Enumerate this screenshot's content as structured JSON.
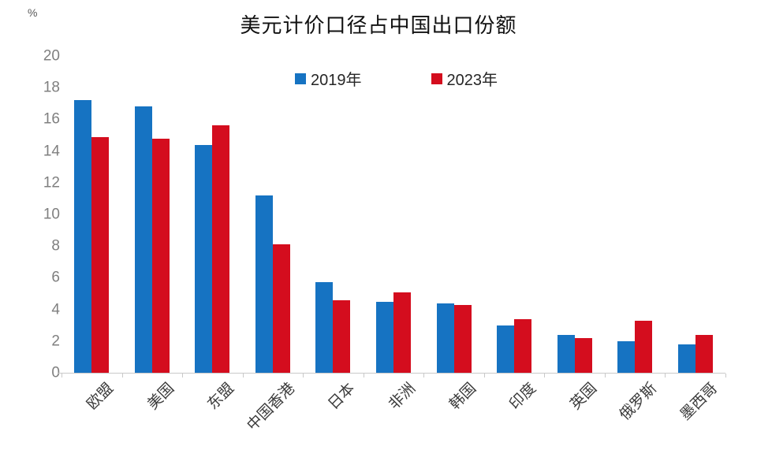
{
  "chart_data": {
    "type": "bar",
    "title": "美元计价口径占中国出口份额",
    "unit_label": "%",
    "categories": [
      "欧盟",
      "美国",
      "东盟",
      "中国香港",
      "日本",
      "非洲",
      "韩国",
      "印度",
      "英国",
      "俄罗斯",
      "墨西哥"
    ],
    "series": [
      {
        "name": "2019年",
        "color": "#1673C2",
        "values": [
          17.2,
          16.8,
          14.4,
          11.2,
          5.7,
          4.5,
          4.4,
          3.0,
          2.4,
          2.0,
          1.8
        ]
      },
      {
        "name": "2023年",
        "color": "#D40D1E",
        "values": [
          14.9,
          14.8,
          15.6,
          8.1,
          4.6,
          5.1,
          4.3,
          3.4,
          2.2,
          3.3,
          2.4
        ]
      }
    ],
    "ylim": [
      0,
      20
    ],
    "yticks": [
      0,
      2,
      4,
      6,
      8,
      10,
      12,
      14,
      16,
      18,
      20
    ],
    "grid": false,
    "legend_position": "top-center",
    "xlabel": "",
    "ylabel": "%"
  },
  "colors": {
    "axis": "#c9c9c9",
    "y_tick_text": "#7f7f7f",
    "x_tick_text": "#3b3b3b",
    "title_text": "#111111",
    "background": "#ffffff"
  }
}
